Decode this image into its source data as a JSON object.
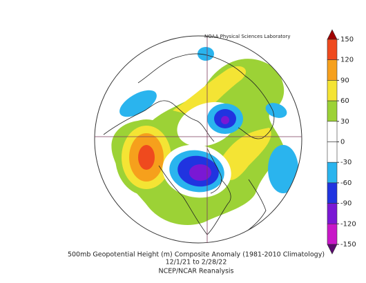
{
  "header": {
    "credit": "NOAA Physical Sciences Laboratory"
  },
  "colorbar": {
    "ticks": [
      150,
      120,
      90,
      60,
      30,
      0,
      -30,
      -60,
      -90,
      -120,
      -150
    ],
    "band_colors": [
      "#ef4a1e",
      "#f6a01c",
      "#f4e434",
      "#9cd236",
      "#ffffff",
      "#ffffff",
      "#2ab4ee",
      "#2034e0",
      "#7a18d4",
      "#c818c8"
    ],
    "over_color": "#a00000",
    "under_color": "#5a0a6e"
  },
  "caption": {
    "title": "500mb Geopotential Height (m) Composite Anomaly (1981-2010 Climatology)",
    "dates": "12/1/21  to 2/28/22",
    "source": "NCEP/NCAR Reanalysis"
  }
}
